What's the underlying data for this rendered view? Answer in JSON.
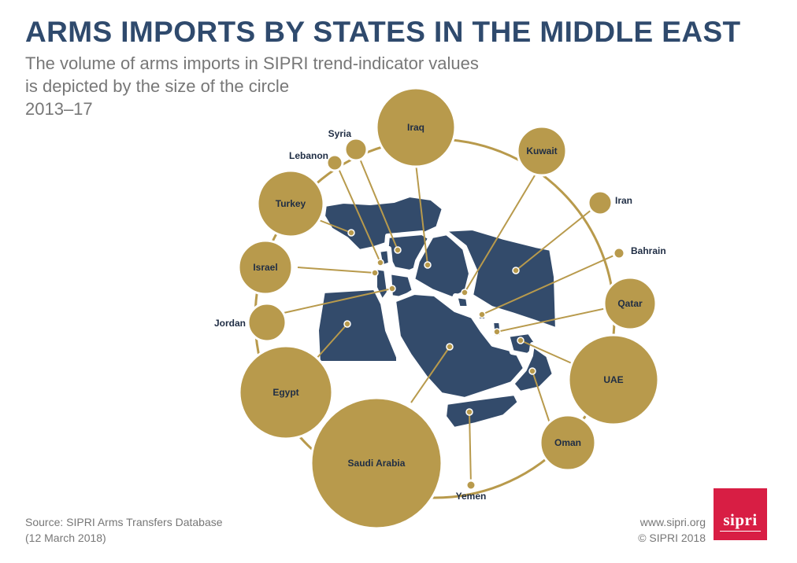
{
  "header": {
    "title": "ARMS IMPORTS BY STATES IN THE MIDDLE EAST",
    "subtitle_line1": "The volume of arms imports in SIPRI trend-indicator values",
    "subtitle_line2": "is depicted by the size of the circle",
    "years": "2013–17"
  },
  "colors": {
    "title": "#2f4a6d",
    "circle_fill": "#b89a4c",
    "map_fill": "#334b6b",
    "connector": "#b89a4c",
    "logo_red": "#d81e44"
  },
  "countries": {
    "iraq": "Iraq",
    "kuwait": "Kuwait",
    "iran": "Iran",
    "bahrain": "Bahrain",
    "qatar": "Qatar",
    "uae": "UAE",
    "oman": "Oman",
    "yemen": "Yemen",
    "saudi_arabia": "Saudi Arabia",
    "egypt": "Egypt",
    "jordan": "Jordan",
    "israel": "Israel",
    "turkey": "Turkey",
    "lebanon": "Lebanon",
    "syria": "Syria"
  },
  "footer": {
    "source_line1": "Source: SIPRI Arms Transfers Database",
    "source_line2": "(12 March 2018)",
    "url": "www.sipri.org",
    "copyright": "© SIPRI 2018"
  },
  "logo": {
    "text": "sipri"
  }
}
